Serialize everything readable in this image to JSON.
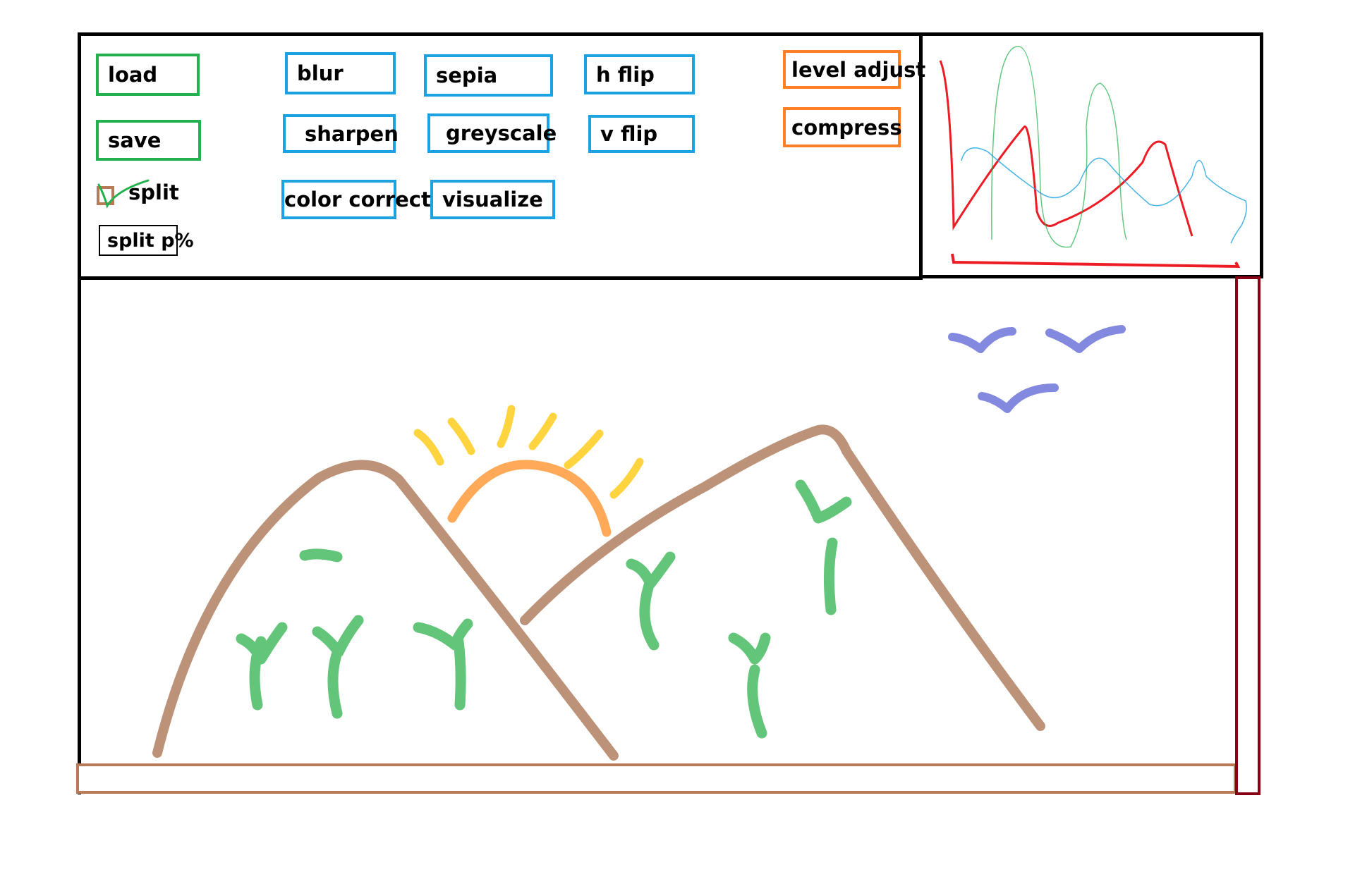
{
  "toolbar": {
    "file_buttons": {
      "load": "load",
      "save": "save"
    },
    "split": {
      "label": "split",
      "checked": true,
      "percent_field": "split p%"
    },
    "filters": {
      "blur": "blur",
      "sharpen": "sharpen",
      "color_correct": "color correct",
      "sepia": "sepia",
      "greyscale": "greyscale",
      "visualize": "visualize",
      "h_flip": "h flip",
      "v_flip": "v flip"
    },
    "adjust": {
      "level_adjust": "level adjust",
      "compress": "compress"
    }
  },
  "colors": {
    "file_buttons": "#22b14c",
    "filter_buttons": "#1aa3e0",
    "adjust_buttons": "#ff7f27",
    "histogram_red": "#ed1c24",
    "histogram_green": "#22b14c",
    "histogram_blue": "#1aa3e0",
    "h_scrollbar": "#b97a57",
    "v_scrollbar": "#880015"
  },
  "histogram": {
    "channels": [
      "red",
      "green",
      "blue"
    ]
  },
  "canvas": {
    "image_subject": [
      "mountains",
      "sun",
      "trees",
      "birds"
    ]
  }
}
